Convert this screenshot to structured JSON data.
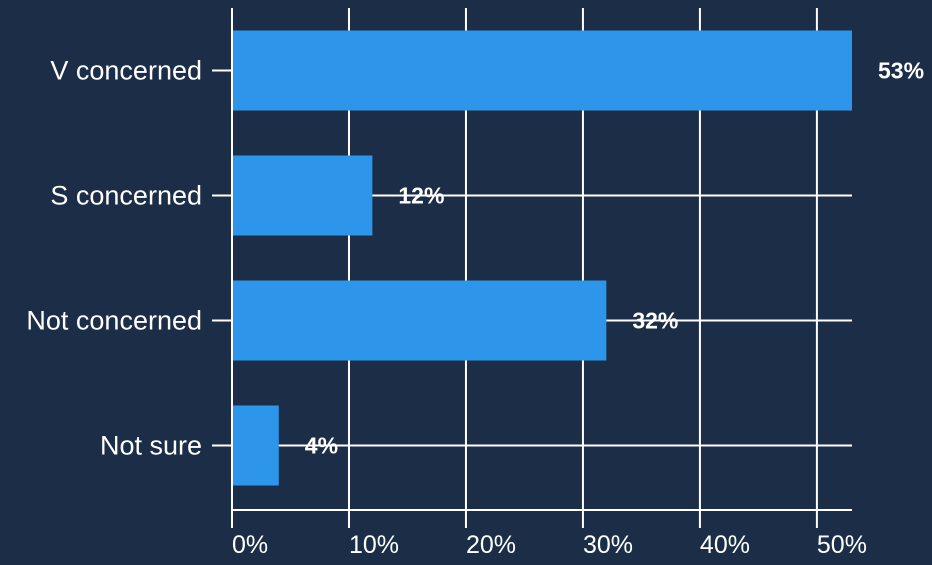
{
  "chart_data": {
    "type": "bar",
    "orientation": "horizontal",
    "categories": [
      "V concerned",
      "S concerned",
      "Not concerned",
      "Not sure"
    ],
    "values": [
      53,
      12,
      32,
      4
    ],
    "data_labels": [
      "53%",
      "12%",
      "32%",
      "4%"
    ],
    "xlim": [
      0,
      53
    ],
    "x_ticks": [
      0,
      10,
      20,
      30,
      40,
      50
    ],
    "x_tick_labels": [
      "0%",
      "10%",
      "20%",
      "30%",
      "40%",
      "50%"
    ],
    "grid": true,
    "title": "",
    "xlabel": "",
    "ylabel": ""
  },
  "colors": {
    "background": "#1c2d47",
    "bar": "#2e96ea",
    "grid": "#ffffff",
    "text": "#ffffff"
  }
}
